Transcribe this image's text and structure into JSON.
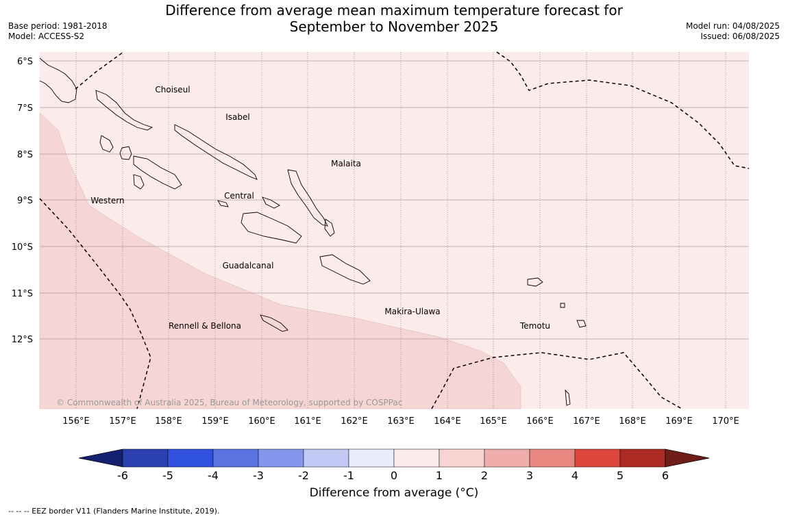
{
  "title": {
    "line1": "Difference from average mean maximum temperature forecast for",
    "line2": "September to November 2025"
  },
  "meta_left": {
    "base_period": "Base period: 1981-2018",
    "model": "Model: ACCESS-S2"
  },
  "meta_right": {
    "model_run": "Model run: 04/08/2025",
    "issued": "Issued: 06/08/2025"
  },
  "map": {
    "lat_labels": [
      "6°S",
      "7°S",
      "8°S",
      "9°S",
      "10°S",
      "11°S",
      "12°S"
    ],
    "lon_labels": [
      "156°E",
      "157°E",
      "158°E",
      "159°E",
      "160°E",
      "161°E",
      "162°E",
      "163°E",
      "164°E",
      "165°E",
      "166°E",
      "167°E",
      "168°E",
      "169°E",
      "170°E"
    ],
    "places": [
      "Choiseul",
      "Isabel",
      "Malaita",
      "Western",
      "Central",
      "Guadalcanal",
      "Makira-Ulawa",
      "Rennell & Bellona",
      "Temotu"
    ],
    "copyright": "© Commonwealth of Australia 2025, Bureau of Meteorology, supported by COSPPac",
    "fill_colors": {
      "anomaly_0_1": "#fbebea",
      "anomaly_1_2": "#f5d6d4"
    }
  },
  "colorbar": {
    "ticks": [
      "-6",
      "-5",
      "-4",
      "-3",
      "-2",
      "-1",
      "0",
      "1",
      "2",
      "3",
      "4",
      "5",
      "6"
    ],
    "colors": [
      "#152170",
      "#2a40b0",
      "#3050df",
      "#5a73e0",
      "#8596ec",
      "#c2c9f4",
      "#eaedfc",
      "#fcebea",
      "#f7d3d1",
      "#efaeab",
      "#e8877f",
      "#dc463b",
      "#ad2924",
      "#6f1d19"
    ],
    "label": "Difference from average (°C)"
  },
  "footnote": "--  --  -- EEZ border V11 (Flanders Marine Institute, 2019)."
}
